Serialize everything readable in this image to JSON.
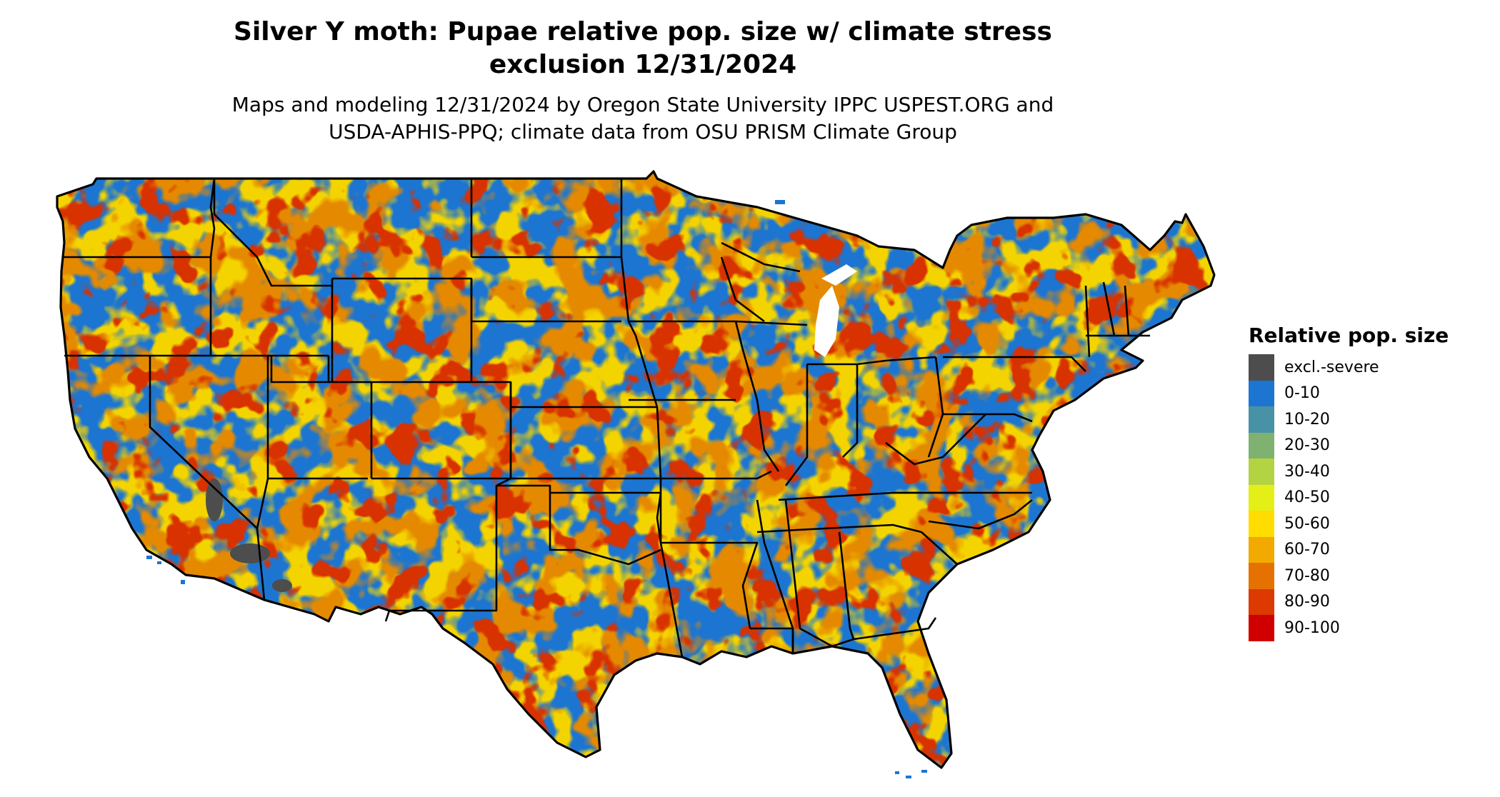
{
  "header": {
    "title_line1": "Silver Y moth: Pupae relative pop. size w/ climate stress",
    "title_line2": "exclusion 12/31/2024",
    "subtitle_line1": "Maps and modeling 12/31/2024 by Oregon State University IPPC USPEST.ORG and",
    "subtitle_line2": "USDA-APHIS-PPQ; climate data from OSU PRISM Climate Group"
  },
  "legend": {
    "title": "Relative pop. size",
    "items": [
      {
        "label": "excl.-severe",
        "color": "#4d4d4d"
      },
      {
        "label": "0-10",
        "color": "#1c75d1"
      },
      {
        "label": "10-20",
        "color": "#4892a6"
      },
      {
        "label": "20-30",
        "color": "#7fb271"
      },
      {
        "label": "30-40",
        "color": "#b3d342"
      },
      {
        "label": "40-50",
        "color": "#e3ef16"
      },
      {
        "label": "50-60",
        "color": "#ffdd00"
      },
      {
        "label": "60-70",
        "color": "#f2a900"
      },
      {
        "label": "70-80",
        "color": "#e57200"
      },
      {
        "label": "80-90",
        "color": "#dc3a00"
      },
      {
        "label": "90-100",
        "color": "#d10000"
      }
    ]
  },
  "map": {
    "region": "contiguous-united-states",
    "background_class": "0-10"
  }
}
